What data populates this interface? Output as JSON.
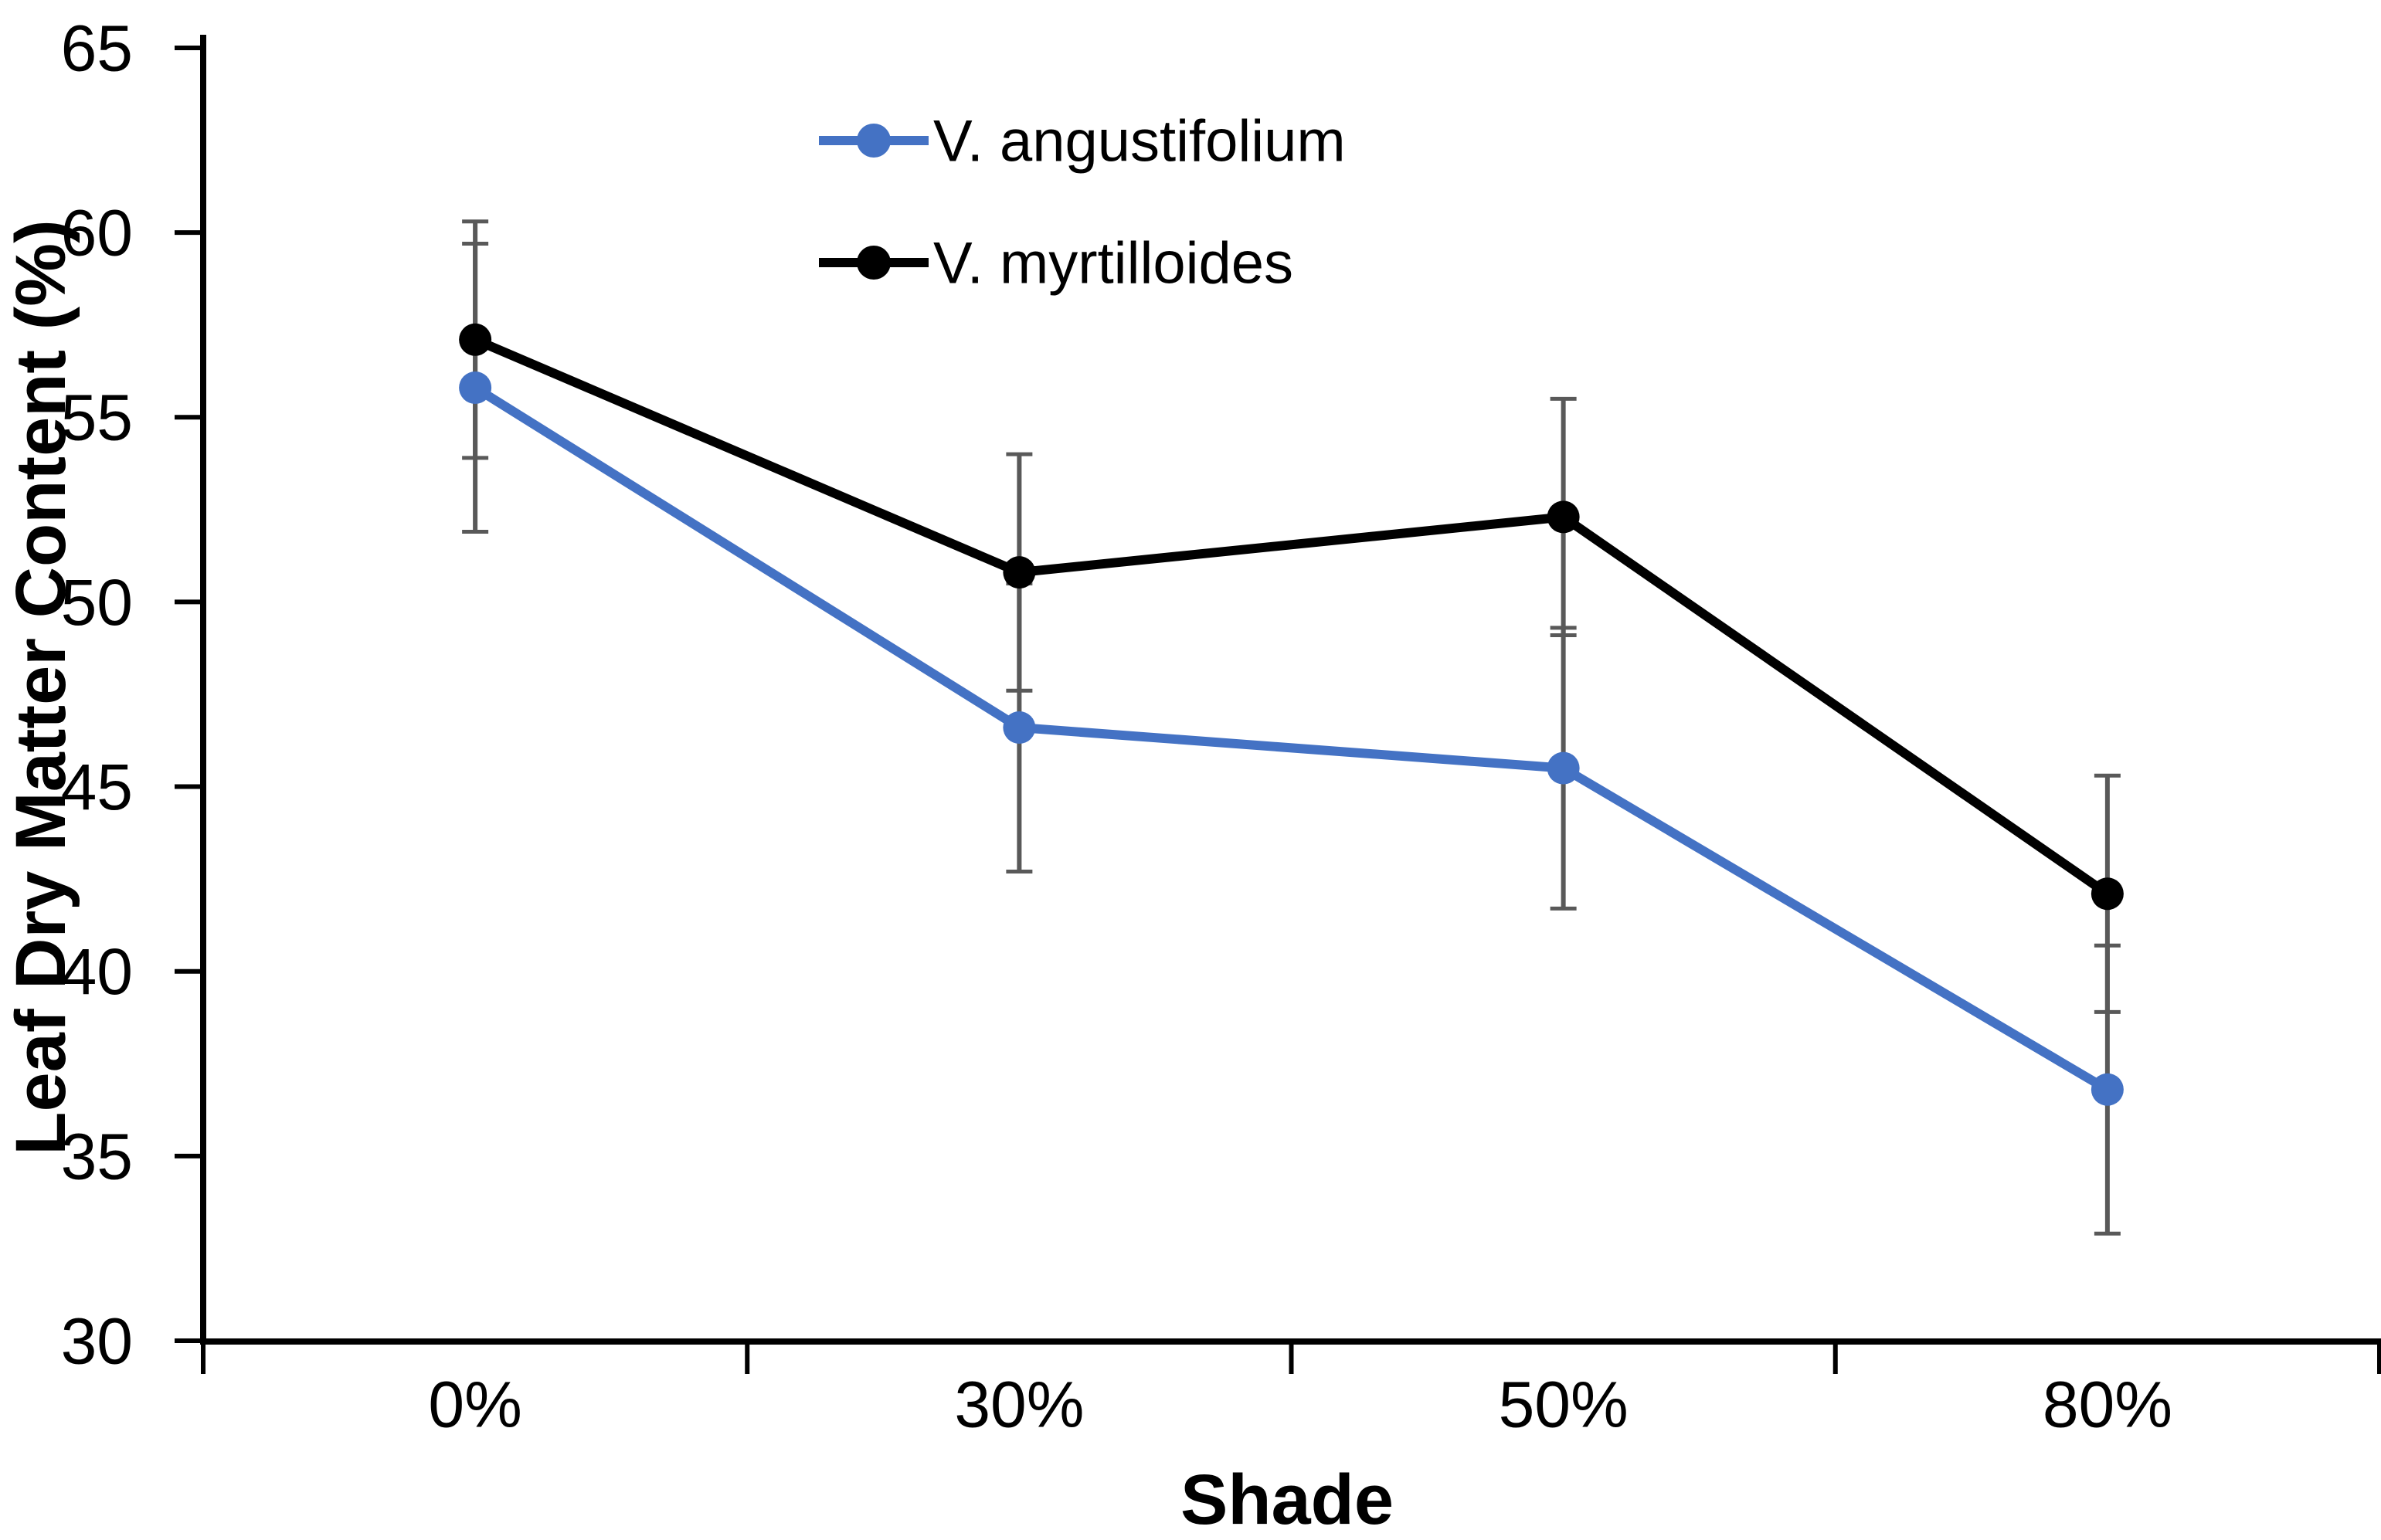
{
  "chart_data": {
    "type": "line",
    "title": "",
    "xlabel": "Shade",
    "ylabel": "Leaf Dry Matter Content (%)",
    "categories": [
      "0%",
      "30%",
      "50%",
      "80%"
    ],
    "series": [
      {
        "name": "V. angustifolium",
        "color": "#4472C4",
        "values": [
          55.8,
          46.6,
          45.5,
          36.8
        ],
        "errors": [
          3.9,
          3.9,
          3.8,
          3.9
        ]
      },
      {
        "name": "V. myrtilloides",
        "color": "#000000",
        "values": [
          57.1,
          50.8,
          52.3,
          42.1
        ],
        "errors": [
          3.2,
          3.2,
          3.2,
          3.2
        ]
      }
    ],
    "ylim": [
      30,
      65
    ],
    "yticks": [
      30,
      35,
      40,
      45,
      50,
      55,
      60,
      65
    ],
    "ytick_step": 5,
    "grid": false,
    "marker": "circle",
    "legend_position": "top-center-inside",
    "error_bar_color": "#595959",
    "axis_color": "#000000",
    "background_color": "#ffffff"
  }
}
